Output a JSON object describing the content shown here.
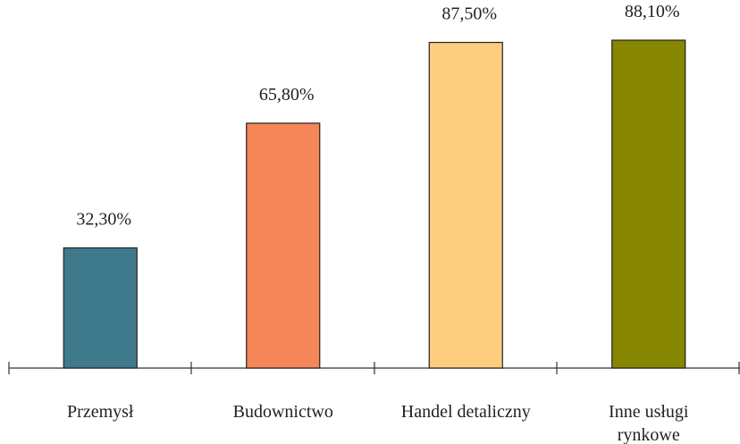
{
  "chart_data": {
    "type": "bar",
    "categories": [
      "Przemysł",
      "Budownictwo",
      "Handel detaliczny",
      "Inne usługi\nrynkowe"
    ],
    "values": [
      32.3,
      65.8,
      87.5,
      88.1
    ],
    "value_labels": [
      "32,30%",
      "65,80%",
      "87,50%",
      "88,10%"
    ],
    "colors": [
      "#3f7a8c",
      "#f58657",
      "#fdce7e",
      "#868600"
    ]
  }
}
